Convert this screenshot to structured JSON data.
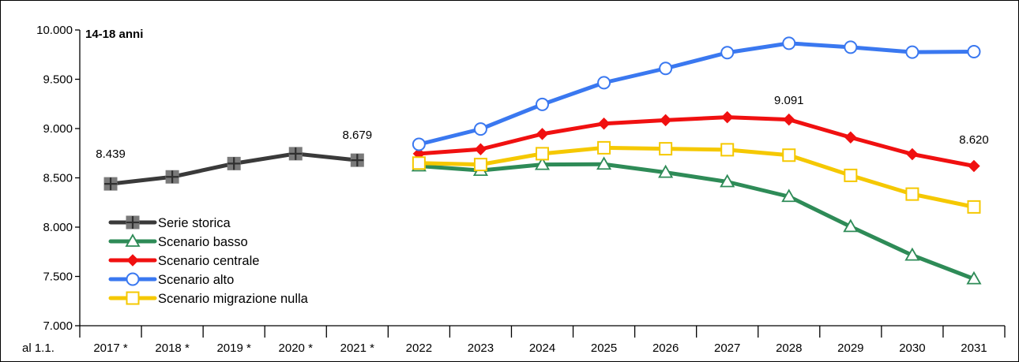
{
  "chart_data": {
    "type": "line",
    "title": "14-18 anni",
    "x_axis_prefix": "al 1.1.",
    "categories": [
      "2017 *",
      "2018 *",
      "2019 *",
      "2020 *",
      "2021 *",
      "2022",
      "2023",
      "2024",
      "2025",
      "2026",
      "2027",
      "2028",
      "2029",
      "2030",
      "2031"
    ],
    "ylim": [
      7000,
      10000
    ],
    "yticks": [
      7000,
      7500,
      8000,
      8500,
      9000,
      9500,
      10000
    ],
    "ytick_labels": [
      "7.000",
      "7.500",
      "8.000",
      "8.500",
      "9.000",
      "9.500",
      "10.000"
    ],
    "grid": false,
    "legend_position": "bottom-left",
    "series": [
      {
        "name": "Serie storica",
        "color": "#3a3a3a",
        "marker": "plus-square",
        "values": [
          8439,
          8510,
          8645,
          8745,
          8679,
          null,
          null,
          null,
          null,
          null,
          null,
          null,
          null,
          null,
          null
        ]
      },
      {
        "name": "Scenario basso",
        "color": "#2e8b57",
        "marker": "triangle",
        "values": [
          null,
          null,
          null,
          null,
          null,
          8620,
          8575,
          8635,
          8638,
          8555,
          8460,
          8310,
          8005,
          7715,
          7475
        ]
      },
      {
        "name": "Scenario centrale",
        "color": "#f01010",
        "marker": "diamond",
        "values": [
          null,
          null,
          null,
          null,
          null,
          8745,
          8790,
          8945,
          9050,
          9085,
          9115,
          9091,
          8910,
          8740,
          8620
        ]
      },
      {
        "name": "Scenario alto",
        "color": "#3a78f0",
        "marker": "circle",
        "values": [
          null,
          null,
          null,
          null,
          null,
          8840,
          8995,
          9245,
          9465,
          9610,
          9770,
          9865,
          9825,
          9775,
          9780
        ]
      },
      {
        "name": "Scenario migrazione nulla",
        "color": "#f5c800",
        "marker": "square",
        "values": [
          null,
          null,
          null,
          null,
          null,
          8650,
          8635,
          8745,
          8805,
          8795,
          8785,
          8730,
          8525,
          8335,
          8205
        ]
      }
    ],
    "annotations": [
      {
        "text": "8.439"
      },
      {
        "text": "8.679"
      },
      {
        "text": "9.091"
      },
      {
        "text": "8.620"
      }
    ]
  }
}
